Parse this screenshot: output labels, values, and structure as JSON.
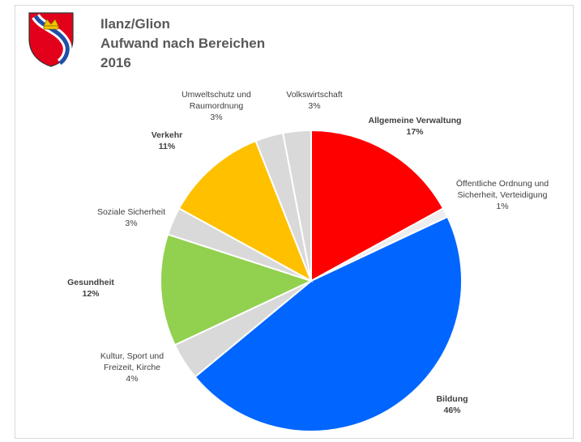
{
  "header": {
    "title_line1": "Ilanz/Glion",
    "title_line2": "Aufwand nach Bereichen",
    "title_line3": "2016"
  },
  "chart_data": {
    "type": "pie",
    "start_angle_deg": 0,
    "direction": "clockwise",
    "slices": [
      {
        "name": "Allgemeine Verwaltung",
        "label_lines": [
          "Allgemeine Verwaltung"
        ],
        "percent_label": "17%",
        "value": 17,
        "color": "#ff0000",
        "bold": true
      },
      {
        "name": "Öffentliche Ordnung und Sicherheit, Verteidigung",
        "label_lines": [
          "Öffentliche Ordnung und",
          "Sicherheit, Verteidigung"
        ],
        "percent_label": "1%",
        "value": 1,
        "color": "#ededed",
        "bold": false
      },
      {
        "name": "Bildung",
        "label_lines": [
          "Bildung"
        ],
        "percent_label": "46%",
        "value": 46,
        "color": "#0066ff",
        "bold": true
      },
      {
        "name": "Kultur, Sport und Freizeit, Kirche",
        "label_lines": [
          "Kultur, Sport und",
          "Freizeit, Kirche"
        ],
        "percent_label": "4%",
        "value": 4,
        "color": "#d9d9d9",
        "bold": false
      },
      {
        "name": "Gesundheit",
        "label_lines": [
          "Gesundheit"
        ],
        "percent_label": "12%",
        "value": 12,
        "color": "#92d050",
        "bold": true
      },
      {
        "name": "Soziale Sicherheit",
        "label_lines": [
          "Soziale Sicherheit"
        ],
        "percent_label": "3%",
        "value": 3,
        "color": "#d9d9d9",
        "bold": false
      },
      {
        "name": "Verkehr",
        "label_lines": [
          "Verkehr"
        ],
        "percent_label": "11%",
        "value": 11,
        "color": "#ffc000",
        "bold": true
      },
      {
        "name": "Umweltschutz und Raumordnung",
        "label_lines": [
          "Umweltschutz und",
          "Raumordnung"
        ],
        "percent_label": "3%",
        "value": 3,
        "color": "#d9d9d9",
        "bold": false
      },
      {
        "name": "Volkswirtschaft",
        "label_lines": [
          "Volkswirtschaft"
        ],
        "percent_label": "3%",
        "value": 3,
        "color": "#d9d9d9",
        "bold": false
      }
    ]
  }
}
